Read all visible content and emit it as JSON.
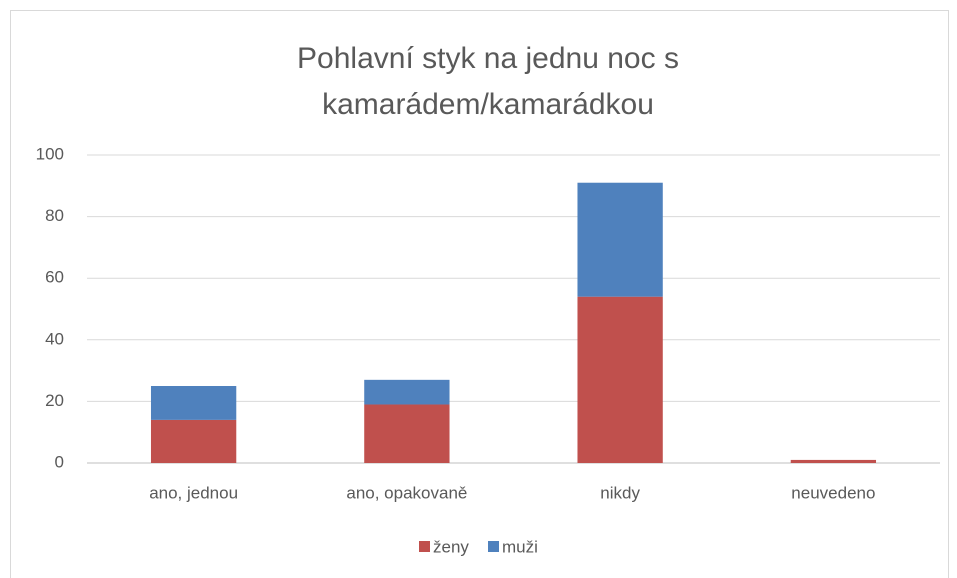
{
  "chart_data": {
    "type": "stacked_bar",
    "title": "Pohlavní styk na jednu noc s kamarádem/kamarádkou",
    "categories": [
      "ano, jednou",
      "ano, opakovaně",
      "nikdy",
      "neuvedeno"
    ],
    "series": [
      {
        "name": "ženy",
        "color": "#c0504d",
        "values": [
          14,
          19,
          54,
          1
        ]
      },
      {
        "name": "muži",
        "color": "#4f81bd",
        "values": [
          11,
          8,
          37,
          0
        ]
      }
    ],
    "ylim": [
      0,
      100
    ],
    "yticks": [
      0,
      20,
      40,
      60,
      80,
      100
    ],
    "grid": true,
    "legend": "bottom"
  }
}
